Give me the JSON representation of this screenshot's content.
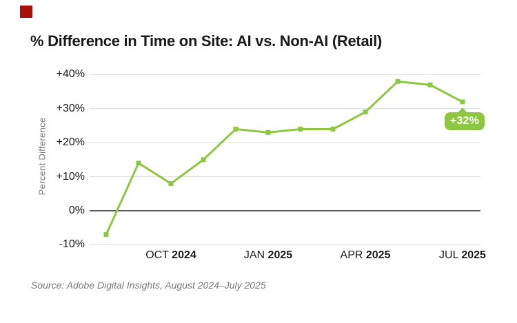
{
  "brand_mark": {
    "color": "#A8100A"
  },
  "title": "% Difference in Time on Site: AI vs. Non-AI (Retail)",
  "chart_data": {
    "type": "line",
    "title": "% Difference in Time on Site: AI vs. Non-AI (Retail)",
    "xlabel": "",
    "ylabel": "Percent Difference",
    "categories": [
      "Aug 2024",
      "Sep 2024",
      "Oct 2024",
      "Nov 2024",
      "Dec 2024",
      "Jan 2025",
      "Feb 2025",
      "Mar 2025",
      "Apr 2025",
      "May 2025",
      "Jun 2025",
      "Jul 2025"
    ],
    "series": [
      {
        "name": "AI vs. Non-AI time on site difference (Retail)",
        "values": [
          -7,
          14,
          8,
          15,
          24,
          23,
          24,
          24,
          29,
          38,
          37,
          32
        ]
      }
    ],
    "ylim": [
      -10,
      40
    ],
    "ytick_step": 10,
    "ytick_labels": [
      "+40%",
      "+30%",
      "+20%",
      "+10%",
      "0%",
      "-10%"
    ],
    "xtick_labels": [
      {
        "month": "OCT",
        "year": "2024"
      },
      {
        "month": "JAN",
        "year": "2025"
      },
      {
        "month": "APR",
        "year": "2025"
      },
      {
        "month": "JUL",
        "year": "2025"
      }
    ],
    "xtick_indices": [
      2,
      5,
      8,
      11
    ],
    "annotation": {
      "text": "+32%",
      "point_index": 11
    },
    "grid": true,
    "legend": false,
    "colors": {
      "line": "#8DC63F",
      "zero_line": "#58595B",
      "gridline": "#D9D9DA"
    }
  },
  "source_note": "Source: Adobe Digital Insights, August 2024–July 2025"
}
